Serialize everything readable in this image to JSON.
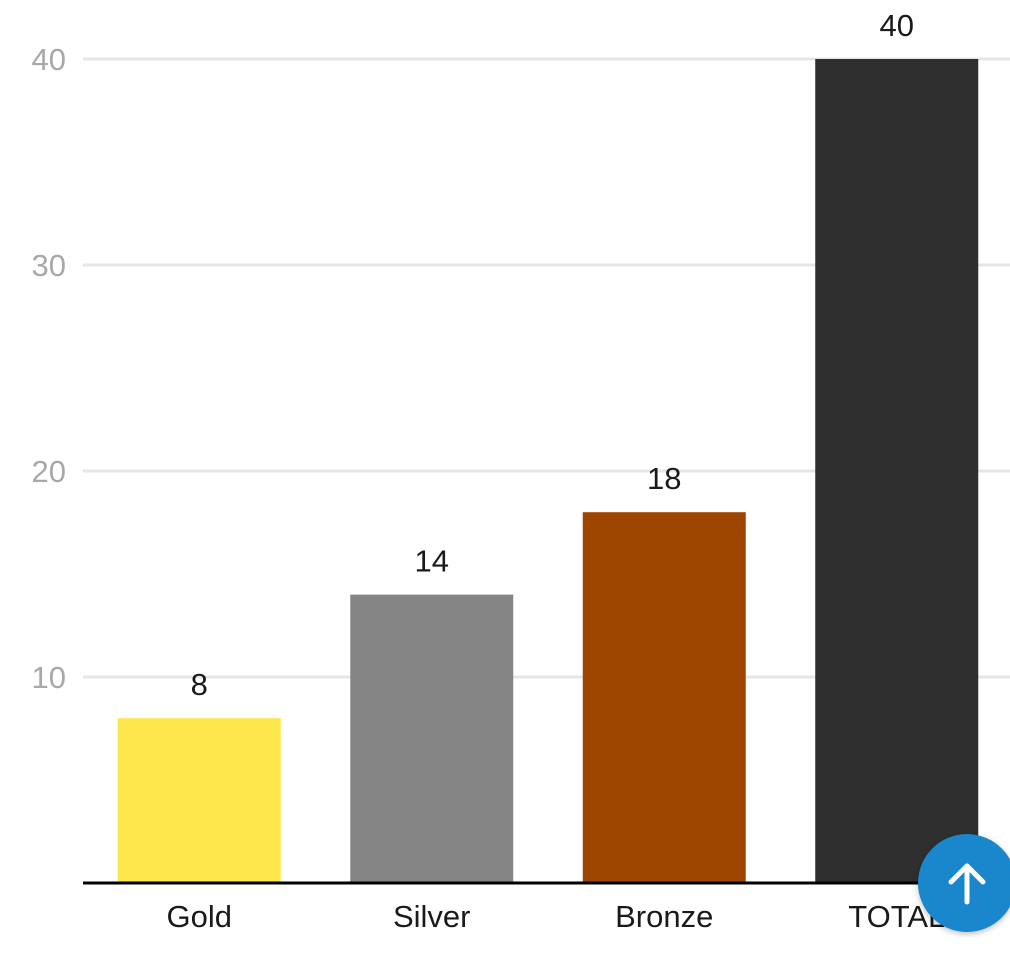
{
  "chart_data": {
    "type": "bar",
    "categories": [
      "Gold",
      "Silver",
      "Bronze",
      "TOTAL"
    ],
    "values": [
      8,
      14,
      18,
      40
    ],
    "value_labels": [
      "8",
      "14",
      "18",
      "40"
    ],
    "colors": [
      "#fde74c",
      "#858585",
      "#9e4500",
      "#2f2f2f"
    ],
    "ylim": [
      0,
      40
    ],
    "yticks": [
      10,
      20,
      30,
      40
    ],
    "ytick_labels": [
      "10",
      "20",
      "30",
      "40"
    ],
    "grid": true,
    "grid_color": "#e6e6e6",
    "axis_color": "#000000",
    "title": "",
    "xlabel": "",
    "ylabel": ""
  },
  "scroll_top": {
    "icon": "arrow-up-icon",
    "color": "#1a86cc"
  }
}
